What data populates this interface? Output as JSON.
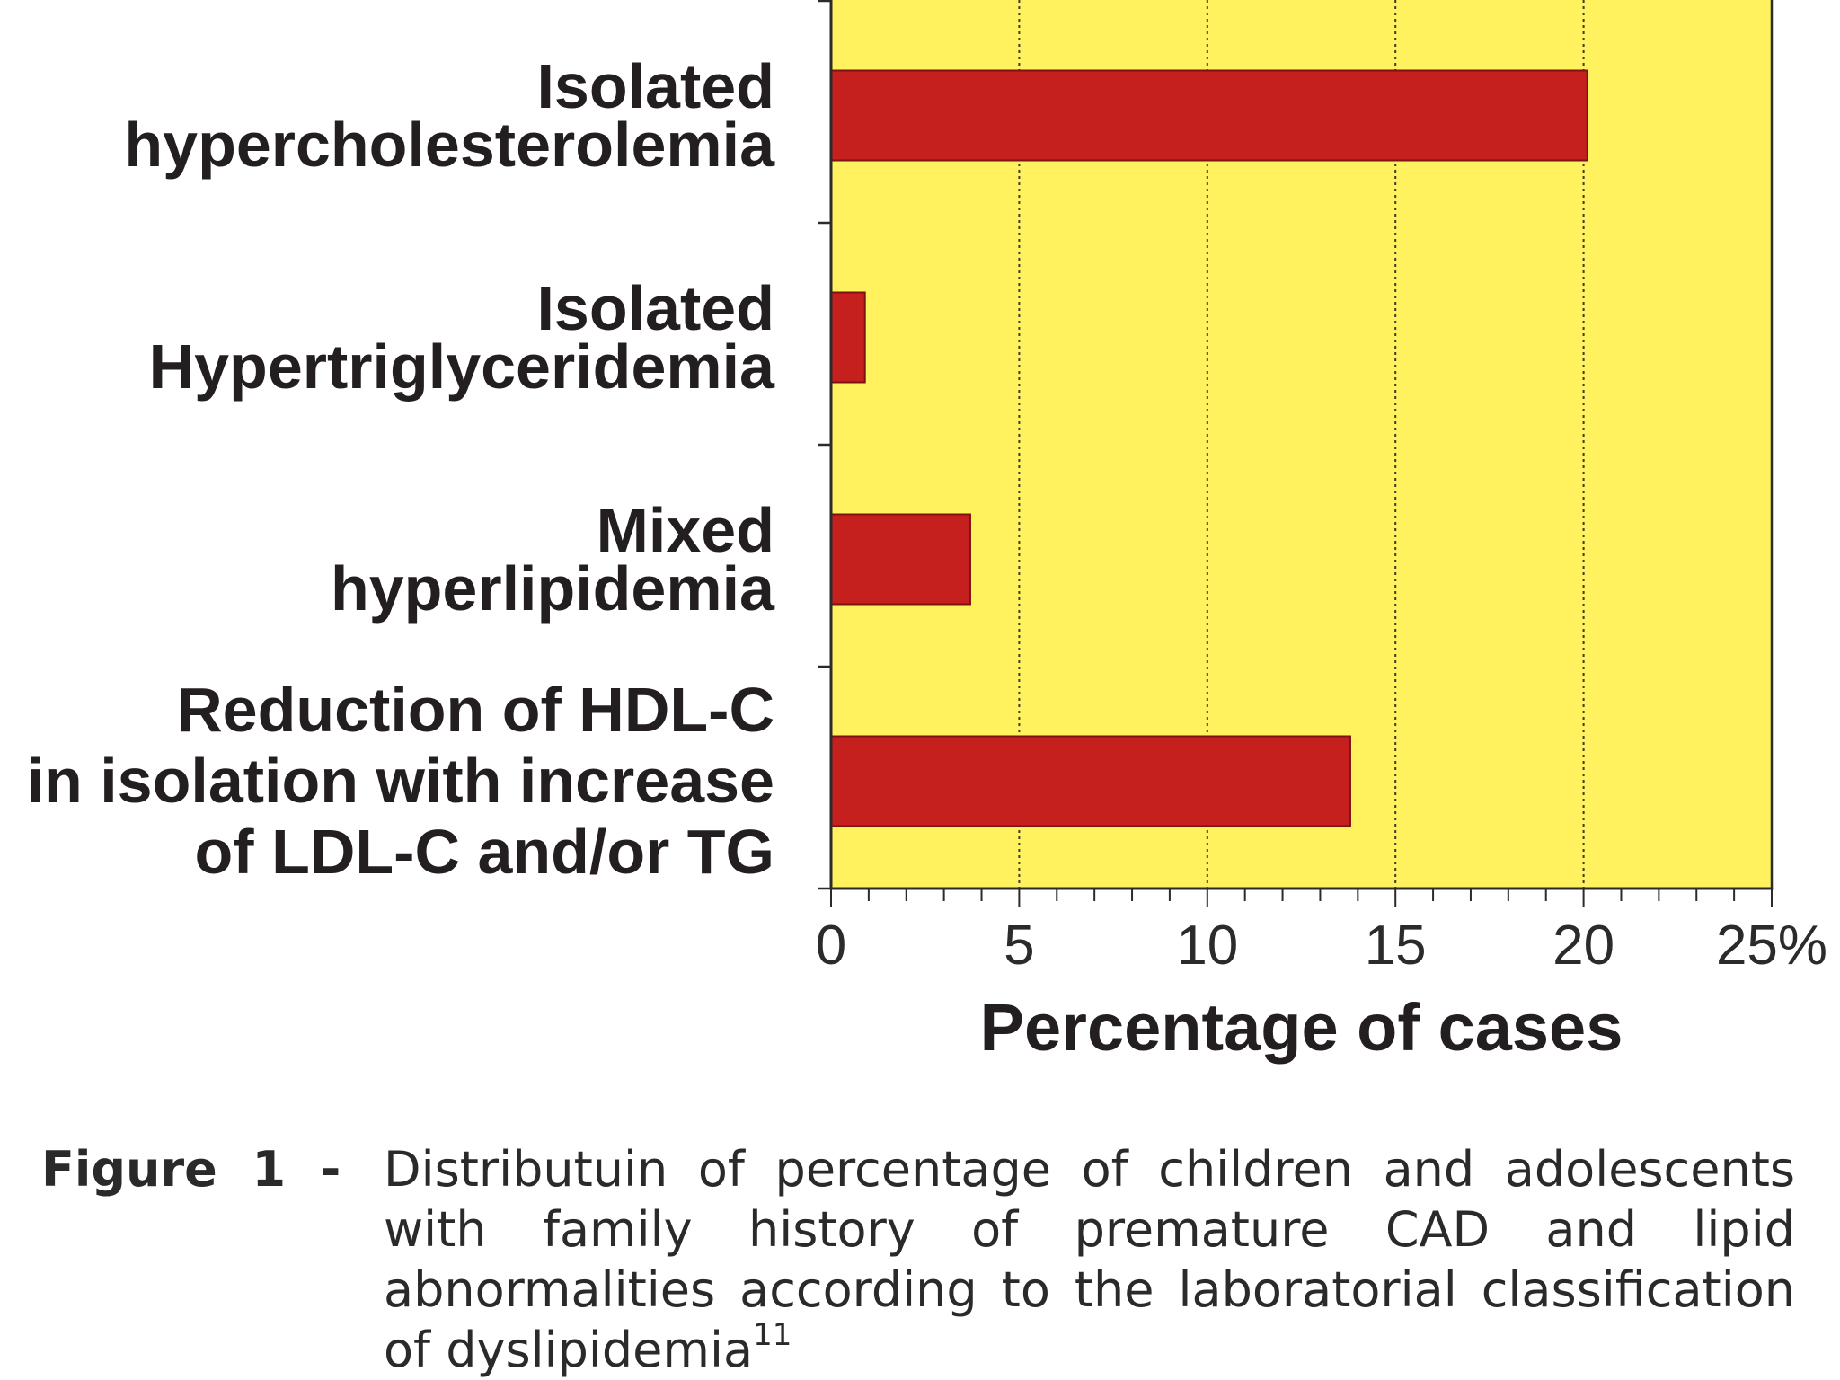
{
  "chart_data": {
    "type": "bar",
    "horizontal": true,
    "categories": [
      "Isolated\nhypercholesterolemia",
      "Isolated\nHypertriglyceridemia",
      "Mixed\nhyperlipidemia",
      "Reduction of HDL-C\nin isolation with increase\nof LDL-C and/or TG"
    ],
    "values": [
      20.1,
      0.9,
      3.7,
      13.8
    ],
    "xlabel": "Percentage of cases",
    "xlim": [
      0,
      25
    ],
    "xticks": [
      0,
      5,
      10,
      15,
      20,
      25
    ],
    "xtick_labels": [
      "0",
      "5",
      "10",
      "15",
      "20",
      "25%"
    ],
    "grid": true,
    "colors": {
      "plot_background": "#FFF25E",
      "bar": "#C5201E",
      "bar_edge": "#7C1212",
      "grid": "#3d3b26",
      "axis": "#2b2b2b"
    }
  },
  "caption": {
    "label": "Figure 1 -",
    "lines": [
      "Distributuin of percentage of children and adolescents",
      "with family history of premature CAD and lipid",
      "abnormalities according to the laboratorial classification",
      "of dyslipidemia"
    ],
    "superscript": "11"
  }
}
